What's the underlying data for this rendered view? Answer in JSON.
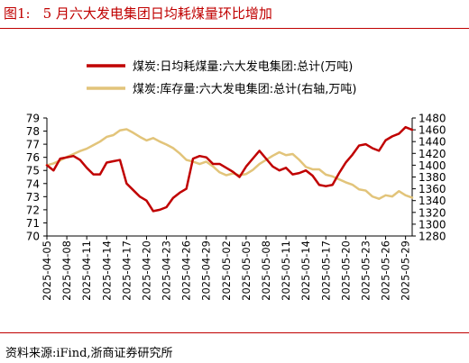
{
  "title_prefix": "图1:",
  "title": "5 月六大发电集团日均耗煤量环比增加",
  "source": "资料来源:iFind,浙商证券研究所",
  "chart_data": {
    "type": "line",
    "x": [
      "2025-04-05",
      "2025-04-06",
      "2025-04-07",
      "2025-04-08",
      "2025-04-09",
      "2025-04-10",
      "2025-04-11",
      "2025-04-12",
      "2025-04-13",
      "2025-04-14",
      "2025-04-15",
      "2025-04-16",
      "2025-04-17",
      "2025-04-18",
      "2025-04-19",
      "2025-04-20",
      "2025-04-21",
      "2025-04-22",
      "2025-04-23",
      "2025-04-24",
      "2025-04-25",
      "2025-04-26",
      "2025-04-27",
      "2025-04-28",
      "2025-04-29",
      "2025-04-30",
      "2025-05-01",
      "2025-05-02",
      "2025-05-03",
      "2025-05-04",
      "2025-05-05",
      "2025-05-06",
      "2025-05-07",
      "2025-05-08",
      "2025-05-09",
      "2025-05-10",
      "2025-05-11",
      "2025-05-12",
      "2025-05-13",
      "2025-05-14",
      "2025-05-15",
      "2025-05-16",
      "2025-05-17",
      "2025-05-18",
      "2025-05-19",
      "2025-05-20",
      "2025-05-21",
      "2025-05-22",
      "2025-05-23",
      "2025-05-24",
      "2025-05-25",
      "2025-05-26",
      "2025-05-27",
      "2025-05-28",
      "2025-05-29",
      "2025-05-30"
    ],
    "xticks": [
      "2025-04-05",
      "2025-04-08",
      "2025-04-11",
      "2025-04-14",
      "2025-04-17",
      "2025-04-20",
      "2025-04-23",
      "2025-04-26",
      "2025-04-29",
      "2025-05-02",
      "2025-05-05",
      "2025-05-08",
      "2025-05-11",
      "2025-05-14",
      "2025-05-17",
      "2025-05-20",
      "2025-05-23",
      "2025-05-26",
      "2025-05-29"
    ],
    "series": [
      {
        "name": "煤炭:日均耗煤量:六大发电集团:总计(万吨)",
        "axis": "left",
        "color": "#c00000",
        "values": [
          75.4,
          75.0,
          75.9,
          76.0,
          76.1,
          75.8,
          75.2,
          74.7,
          74.7,
          75.6,
          75.7,
          75.8,
          74.0,
          73.5,
          73.0,
          72.7,
          71.9,
          72.0,
          72.2,
          72.9,
          73.3,
          73.6,
          75.9,
          76.1,
          76.0,
          75.5,
          75.5,
          75.2,
          74.9,
          74.5,
          75.3,
          75.9,
          76.5,
          75.9,
          75.3,
          75.0,
          75.2,
          74.7,
          74.8,
          75.0,
          74.6,
          73.9,
          73.8,
          73.9,
          74.8,
          75.6,
          76.2,
          76.9,
          77.0,
          76.7,
          76.5,
          77.3,
          77.6,
          77.8,
          78.3,
          78.1
        ]
      },
      {
        "name": "煤炭:库存量:六大发电集团:总计(右轴,万吨)",
        "axis": "right",
        "color": "#e2c47a",
        "values": [
          1400,
          1403,
          1408,
          1414,
          1419,
          1424,
          1428,
          1434,
          1440,
          1448,
          1451,
          1459,
          1461,
          1455,
          1448,
          1442,
          1446,
          1440,
          1435,
          1429,
          1420,
          1409,
          1406,
          1402,
          1406,
          1398,
          1388,
          1383,
          1386,
          1383,
          1385,
          1392,
          1402,
          1409,
          1416,
          1422,
          1417,
          1419,
          1409,
          1397,
          1393,
          1393,
          1384,
          1381,
          1376,
          1371,
          1367,
          1359,
          1357,
          1347,
          1343,
          1349,
          1347,
          1356,
          1349,
          1345
        ]
      }
    ],
    "ylim_left": [
      70,
      79
    ],
    "yticks_left": [
      70,
      71,
      72,
      73,
      74,
      75,
      76,
      77,
      78,
      79
    ],
    "ylim_right": [
      1280,
      1480
    ],
    "yticks_right": [
      1280,
      1300,
      1320,
      1340,
      1360,
      1380,
      1400,
      1420,
      1440,
      1460,
      1480
    ],
    "grid": false,
    "legend_position": "top-left"
  }
}
